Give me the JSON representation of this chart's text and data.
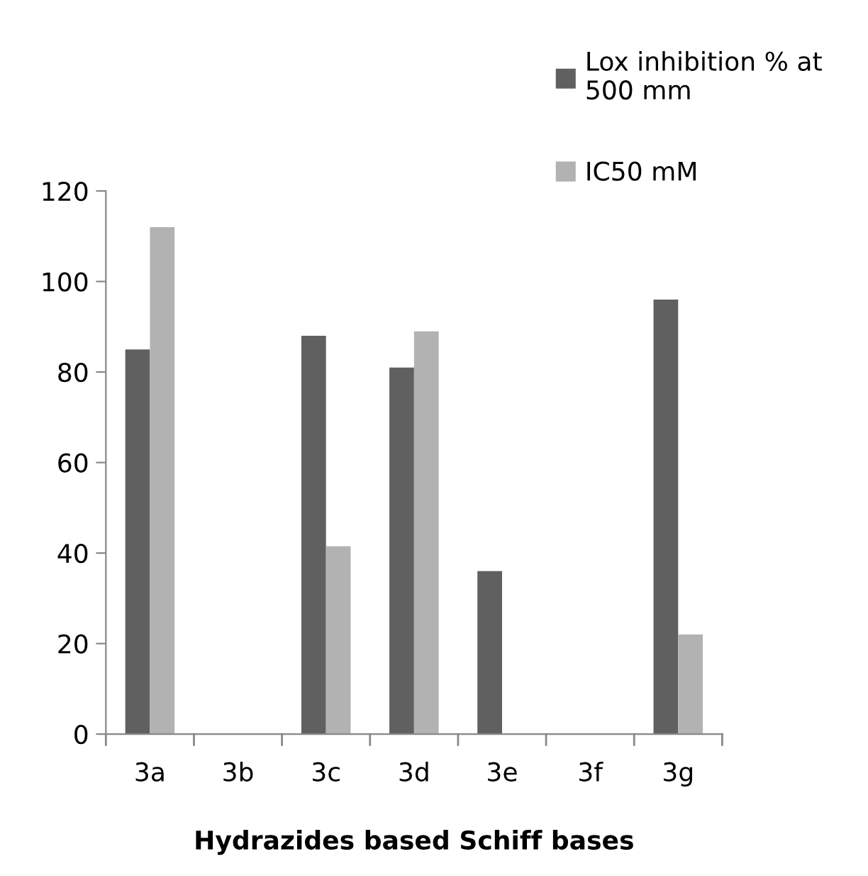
{
  "chart_data": {
    "type": "bar",
    "xlabel": "Hydrazides based Schiff bases",
    "categories": [
      "3a",
      "3b",
      "3c",
      "3d",
      "3e",
      "3f",
      "3g"
    ],
    "series": [
      {
        "name": "Lox inhibition % at 500 mm",
        "color": "#606060",
        "values": [
          85,
          null,
          88,
          81,
          36,
          null,
          96
        ]
      },
      {
        "name": "IC50 mM",
        "color": "#b2b2b2",
        "values": [
          112,
          null,
          41.5,
          89,
          null,
          null,
          22
        ]
      }
    ],
    "ylim": [
      0,
      120
    ],
    "yticks": [
      0,
      20,
      40,
      60,
      80,
      100,
      120
    ],
    "grid": false,
    "legend": "top right"
  }
}
